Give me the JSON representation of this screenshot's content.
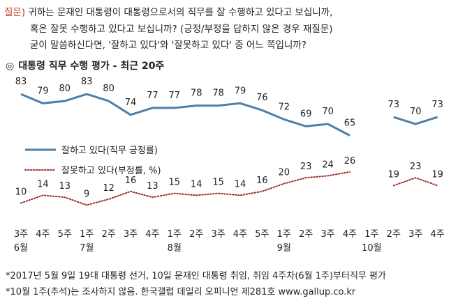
{
  "question": {
    "tag": "질문)",
    "line1": "귀하는 문재인 대통령이 대통령으로서의 직무를 잘 수행하고 있다고 보십니까,",
    "line2": "혹은 잘못 수행하고 있다고 보십니까? (긍정/부정을 답하지 않은 경우 재질문)",
    "line3": "굳이 말씀하신다면, '잘하고 있다'와 '잘못하고 있다' 중 어느 쪽입니까?"
  },
  "title_mark": "◎",
  "chart_data": {
    "type": "line",
    "title": "대통령 직무 수행 평가 - 최근 20주",
    "categories": [
      "3주",
      "4주",
      "5주",
      "1주",
      "2주",
      "3주",
      "4주",
      "1주",
      "2주",
      "3주",
      "4주",
      "5주",
      "1주",
      "2주",
      "3주",
      "4주",
      "1주",
      "2주",
      "3주",
      "4주"
    ],
    "month_labels": [
      {
        "index": 0,
        "label": "6월"
      },
      {
        "index": 3,
        "label": "7월"
      },
      {
        "index": 7,
        "label": "8월"
      },
      {
        "index": 12,
        "label": "9월"
      },
      {
        "index": 16,
        "label": "10월"
      }
    ],
    "series": [
      {
        "name": "잘하고 있다(직무 긍정률)",
        "color": "#4f7fa7",
        "style": "solid",
        "values": [
          83,
          79,
          80,
          83,
          80,
          74,
          77,
          77,
          78,
          78,
          79,
          76,
          72,
          69,
          70,
          65,
          null,
          73,
          70,
          73
        ]
      },
      {
        "name": "잘못하고 있다(부정률, %)",
        "color": "#9b2d2d",
        "style": "dotted",
        "values": [
          10,
          14,
          13,
          9,
          12,
          16,
          13,
          15,
          14,
          15,
          14,
          16,
          20,
          23,
          24,
          26,
          null,
          19,
          23,
          19
        ]
      }
    ],
    "ylim": [
      0,
      100
    ],
    "legend_position": "middle-left",
    "grid": false
  },
  "notes": [
    "*2017년 5월 9일 19대 대통령 선거, 10일 문재인 대통령 취임, 취임 4주차(6월 1주)부터직무 평가",
    "*10월 1주(추석)는 조사하지 않음. 한국갤럽 데일리 오피니언 제281호 www.gallup.co.kr"
  ]
}
